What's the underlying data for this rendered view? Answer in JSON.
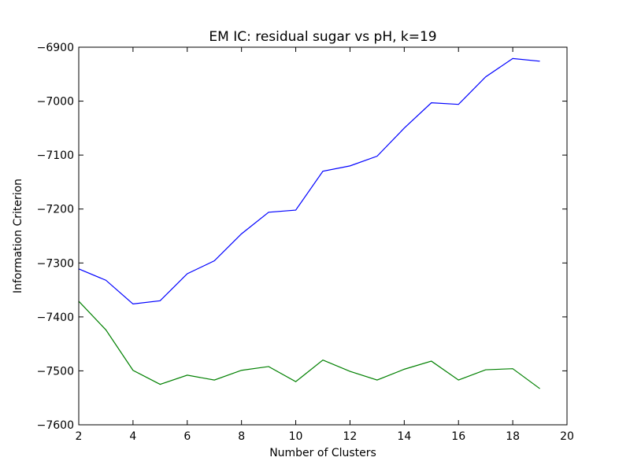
{
  "chart_data": {
    "type": "line",
    "title": "EM IC: residual sugar vs pH, k=19",
    "xlabel": "Number of Clusters",
    "ylabel": "Information Criterion",
    "xlim": [
      2,
      20
    ],
    "ylim": [
      -7600,
      -6900
    ],
    "xticks": [
      2,
      4,
      6,
      8,
      10,
      12,
      14,
      16,
      18,
      20
    ],
    "yticks": [
      -6900,
      -7000,
      -7100,
      -7200,
      -7300,
      -7400,
      -7500,
      -7600
    ],
    "grid": false,
    "x": [
      2,
      3,
      4,
      5,
      6,
      7,
      8,
      9,
      10,
      11,
      12,
      13,
      14,
      15,
      16,
      17,
      18,
      19
    ],
    "series": [
      {
        "color": "#0000ff",
        "values": [
          -7311,
          -7332,
          -7376,
          -7370,
          -7320,
          -7296,
          -7246,
          -7206,
          -7202,
          -7130,
          -7120,
          -7102,
          -7050,
          -7003,
          -7006,
          -6955,
          -6921,
          -6926
        ]
      },
      {
        "color": "#008000",
        "values": [
          -7371,
          -7424,
          -7499,
          -7525,
          -7508,
          -7517,
          -7499,
          -7492,
          -7520,
          -7480,
          -7501,
          -7517,
          -7497,
          -7482,
          -7517,
          -7498,
          -7496,
          -7533
        ]
      }
    ]
  }
}
